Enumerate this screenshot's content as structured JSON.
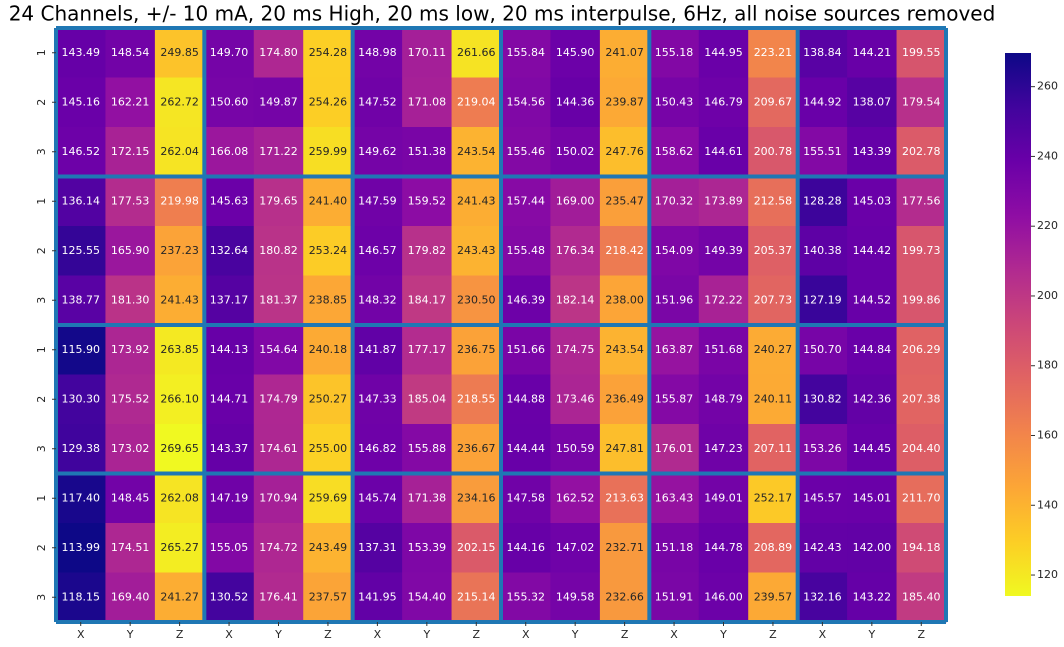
{
  "chart_data": {
    "type": "heatmap",
    "title": "24 Channels, +/- 10 mA, 20 ms High, 20 ms low, 20 ms interpulse, 6Hz, all noise sources removed",
    "x_categories": [
      "X",
      "Y",
      "Z",
      "X",
      "Y",
      "Z",
      "X",
      "Y",
      "Z",
      "X",
      "Y",
      "Z",
      "X",
      "Y",
      "Z",
      "X",
      "Y",
      "Z"
    ],
    "y_categories": [
      "1",
      "2",
      "3",
      "1",
      "2",
      "3",
      "1",
      "2",
      "3",
      "1",
      "2",
      "3"
    ],
    "colormap": "plasma",
    "clim": [
      113.99,
      269.65
    ],
    "cticks": [
      120,
      140,
      160,
      180,
      200,
      220,
      240,
      260
    ],
    "values": [
      [
        143.49,
        148.54,
        249.85,
        149.7,
        174.8,
        254.28,
        148.98,
        170.11,
        261.66,
        155.84,
        145.9,
        241.07,
        155.18,
        144.95,
        223.21,
        138.84,
        144.21,
        199.55
      ],
      [
        145.16,
        162.21,
        262.72,
        150.6,
        149.87,
        254.26,
        147.52,
        171.08,
        219.04,
        154.56,
        144.36,
        239.87,
        150.43,
        146.79,
        209.67,
        144.92,
        138.07,
        179.54
      ],
      [
        146.52,
        172.15,
        262.04,
        166.08,
        171.22,
        259.99,
        149.62,
        151.38,
        243.54,
        155.46,
        150.02,
        247.76,
        158.62,
        144.61,
        200.78,
        155.51,
        143.39,
        202.78
      ],
      [
        136.14,
        177.53,
        219.98,
        145.63,
        179.65,
        241.4,
        147.59,
        159.52,
        241.43,
        157.44,
        169.0,
        235.47,
        170.32,
        173.89,
        212.58,
        128.28,
        145.03,
        177.56
      ],
      [
        125.55,
        165.9,
        237.23,
        132.64,
        180.82,
        253.24,
        146.57,
        179.82,
        243.43,
        155.48,
        176.34,
        218.42,
        154.09,
        149.39,
        205.37,
        140.38,
        144.42,
        199.73
      ],
      [
        138.77,
        181.3,
        241.43,
        137.17,
        181.37,
        238.85,
        148.32,
        184.17,
        230.5,
        146.39,
        182.14,
        238.0,
        151.96,
        172.22,
        207.73,
        127.19,
        144.52,
        199.86
      ],
      [
        115.9,
        173.92,
        263.85,
        144.13,
        154.64,
        240.18,
        141.87,
        177.17,
        236.75,
        151.66,
        174.75,
        243.54,
        163.87,
        151.68,
        240.27,
        150.7,
        144.84,
        206.29
      ],
      [
        130.3,
        175.52,
        266.1,
        144.71,
        174.79,
        250.27,
        147.33,
        185.04,
        218.55,
        144.88,
        173.46,
        236.49,
        155.87,
        148.79,
        240.11,
        130.82,
        142.36,
        207.38
      ],
      [
        129.38,
        173.02,
        269.65,
        143.37,
        174.61,
        255.0,
        146.82,
        155.88,
        236.67,
        144.44,
        150.59,
        247.81,
        176.01,
        147.23,
        207.11,
        153.26,
        144.45,
        204.4
      ],
      [
        117.4,
        148.45,
        262.08,
        147.19,
        170.94,
        259.69,
        145.74,
        171.38,
        234.16,
        147.58,
        162.52,
        213.63,
        163.43,
        149.01,
        252.17,
        145.57,
        145.01,
        211.7
      ],
      [
        113.99,
        174.51,
        265.27,
        155.05,
        174.72,
        243.49,
        137.31,
        153.39,
        202.15,
        144.16,
        147.02,
        232.71,
        151.18,
        144.78,
        208.89,
        142.43,
        142.0,
        194.18
      ],
      [
        118.15,
        169.4,
        241.27,
        130.52,
        176.41,
        237.57,
        141.95,
        154.4,
        215.14,
        155.32,
        149.58,
        232.66,
        151.91,
        146.0,
        239.57,
        132.16,
        143.22,
        185.4
      ]
    ],
    "value_labels": [
      [
        "143.49",
        "148.54",
        "249.85",
        "149.70",
        "174.80",
        "254.28",
        "148.98",
        "170.11",
        "261.66",
        "155.84",
        "145.90",
        "241.07",
        "155.18",
        "144.95",
        "223.21",
        "138.84",
        "144.21",
        "199.55"
      ],
      [
        "145.16",
        "162.21",
        "262.72",
        "150.60",
        "149.87",
        "254.26",
        "147.52",
        "171.08",
        "219.04",
        "154.56",
        "144.36",
        "239.87",
        "150.43",
        "146.79",
        "209.67",
        "144.92",
        "138.07",
        "179.54"
      ],
      [
        "146.52",
        "172.15",
        "262.04",
        "166.08",
        "171.22",
        "259.99",
        "149.62",
        "151.38",
        "243.54",
        "155.46",
        "150.02",
        "247.76",
        "158.62",
        "144.61",
        "200.78",
        "155.51",
        "143.39",
        "202.78"
      ],
      [
        "136.14",
        "177.53",
        "219.98",
        "145.63",
        "179.65",
        "241.40",
        "147.59",
        "159.52",
        "241.43",
        "157.44",
        "169.00",
        "235.47",
        "170.32",
        "173.89",
        "212.58",
        "128.28",
        "145.03",
        "177.56"
      ],
      [
        "125.55",
        "165.90",
        "237.23",
        "132.64",
        "180.82",
        "253.24",
        "146.57",
        "179.82",
        "243.43",
        "155.48",
        "176.34",
        "218.42",
        "154.09",
        "149.39",
        "205.37",
        "140.38",
        "144.42",
        "199.73"
      ],
      [
        "138.77",
        "181.30",
        "241.43",
        "137.17",
        "181.37",
        "238.85",
        "148.32",
        "184.17",
        "230.50",
        "146.39",
        "182.14",
        "238.00",
        "151.96",
        "172.22",
        "207.73",
        "127.19",
        "144.52",
        "199.86"
      ],
      [
        "115.90",
        "173.92",
        "263.85",
        "144.13",
        "154.64",
        "240.18",
        "141.87",
        "177.17",
        "236.75",
        "151.66",
        "174.75",
        "243.54",
        "163.87",
        "151.68",
        "240.27",
        "150.70",
        "144.84",
        "206.29"
      ],
      [
        "130.30",
        "175.52",
        "266.10",
        "144.71",
        "174.79",
        "250.27",
        "147.33",
        "185.04",
        "218.55",
        "144.88",
        "173.46",
        "236.49",
        "155.87",
        "148.79",
        "240.11",
        "130.82",
        "142.36",
        "207.38"
      ],
      [
        "129.38",
        "173.02",
        "269.65",
        "143.37",
        "174.61",
        "255.00",
        "146.82",
        "155.88",
        "236.67",
        "144.44",
        "150.59",
        "247.81",
        "176.01",
        "147.23",
        "207.11",
        "153.26",
        "144.45",
        "204.40"
      ],
      [
        "117.40",
        "148.45",
        "262.08",
        "147.19",
        "170.94",
        "259.69",
        "145.74",
        "171.38",
        "234.16",
        "147.58",
        "162.52",
        "213.63",
        "163.43",
        "149.01",
        "252.17",
        "145.57",
        "145.01",
        "211.70"
      ],
      [
        "113.99",
        "174.51",
        "265.27",
        "155.05",
        "174.72",
        "243.49",
        "137.31",
        "153.39",
        "202.15",
        "144.16",
        "147.02",
        "232.71",
        "151.18",
        "144.78",
        "208.89",
        "142.43",
        "142.00",
        "194.18"
      ],
      [
        "118.15",
        "169.40",
        "241.27",
        "130.52",
        "176.41",
        "237.57",
        "141.95",
        "154.40",
        "215.14",
        "155.32",
        "149.58",
        "232.66",
        "151.91",
        "146.00",
        "239.57",
        "132.16",
        "143.22",
        "185.40"
      ]
    ]
  }
}
